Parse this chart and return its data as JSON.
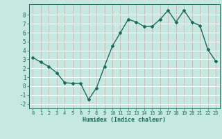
{
  "x": [
    0,
    1,
    2,
    3,
    4,
    5,
    6,
    7,
    8,
    9,
    10,
    11,
    12,
    13,
    14,
    15,
    16,
    17,
    18,
    19,
    20,
    21,
    22,
    23
  ],
  "y": [
    3.2,
    2.7,
    2.2,
    1.5,
    0.4,
    0.3,
    0.3,
    -1.5,
    -0.2,
    2.2,
    4.5,
    6.0,
    7.5,
    7.2,
    6.7,
    6.7,
    7.5,
    8.5,
    7.2,
    8.5,
    7.2,
    6.8,
    4.1,
    2.8
  ],
  "title": "",
  "xlabel": "Humidex (Indice chaleur)",
  "xlim": [
    -0.5,
    23.5
  ],
  "ylim": [
    -2.5,
    9.2
  ],
  "bg_color": "#c5e8e0",
  "line_color": "#1a6b5a",
  "grid_color_v": "#e8b0b0",
  "grid_color_h": "#ffffff",
  "yticks": [
    -2,
    -1,
    0,
    1,
    2,
    3,
    4,
    5,
    6,
    7,
    8
  ],
  "xticks": [
    0,
    1,
    2,
    3,
    4,
    5,
    6,
    7,
    8,
    9,
    10,
    11,
    12,
    13,
    14,
    15,
    16,
    17,
    18,
    19,
    20,
    21,
    22,
    23
  ]
}
